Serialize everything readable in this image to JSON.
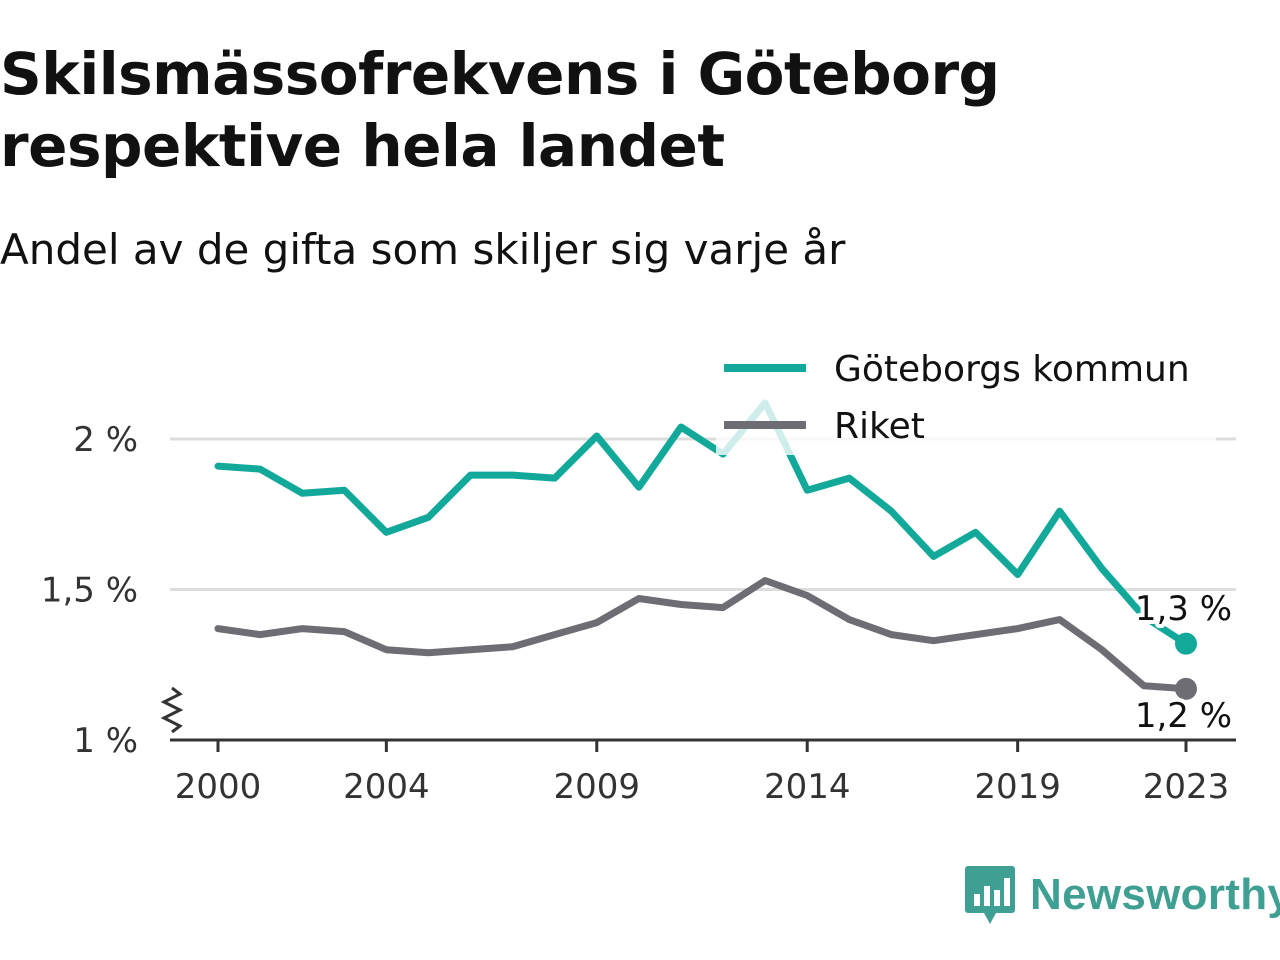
{
  "chart_data": {
    "type": "line",
    "title": "Skilsmässofrekvens i Göteborg respektive hela landet",
    "subtitle": "Andel av de gifta som skiljer sig varje år",
    "xlabel": "",
    "ylabel": "",
    "x": [
      2000,
      2001,
      2002,
      2003,
      2004,
      2005,
      2006,
      2007,
      2008,
      2009,
      2010,
      2011,
      2012,
      2013,
      2014,
      2015,
      2016,
      2017,
      2018,
      2019,
      2020,
      2021,
      2022,
      2023
    ],
    "x_ticks": [
      "2000",
      "2004",
      "2009",
      "2014",
      "2019",
      "2023"
    ],
    "y_ticks": [
      "1 %",
      "1,5 %",
      "2 %"
    ],
    "ylim": [
      1.0,
      2.2
    ],
    "y_axis_break": true,
    "grid": true,
    "legend_position": "top-right",
    "series": [
      {
        "name": "Göteborgs kommun",
        "color": "#12a89a",
        "values": [
          1.91,
          1.9,
          1.82,
          1.83,
          1.69,
          1.74,
          1.88,
          1.88,
          1.87,
          2.01,
          1.84,
          2.04,
          1.95,
          2.12,
          1.83,
          1.87,
          1.76,
          1.61,
          1.69,
          1.55,
          1.76,
          1.57,
          1.41,
          1.32
        ],
        "end_label": "1,3 %"
      },
      {
        "name": "Riket",
        "color": "#6e6d73",
        "values": [
          1.37,
          1.35,
          1.37,
          1.36,
          1.3,
          1.29,
          1.3,
          1.31,
          1.35,
          1.39,
          1.47,
          1.45,
          1.44,
          1.53,
          1.48,
          1.4,
          1.35,
          1.33,
          1.35,
          1.37,
          1.4,
          1.3,
          1.18,
          1.17
        ],
        "end_label": "1,2 %"
      }
    ]
  },
  "brand": {
    "name": "Newsworthy",
    "logo_icon": "bar-chart-speech-bubble-icon",
    "color": "#3f9f92"
  }
}
